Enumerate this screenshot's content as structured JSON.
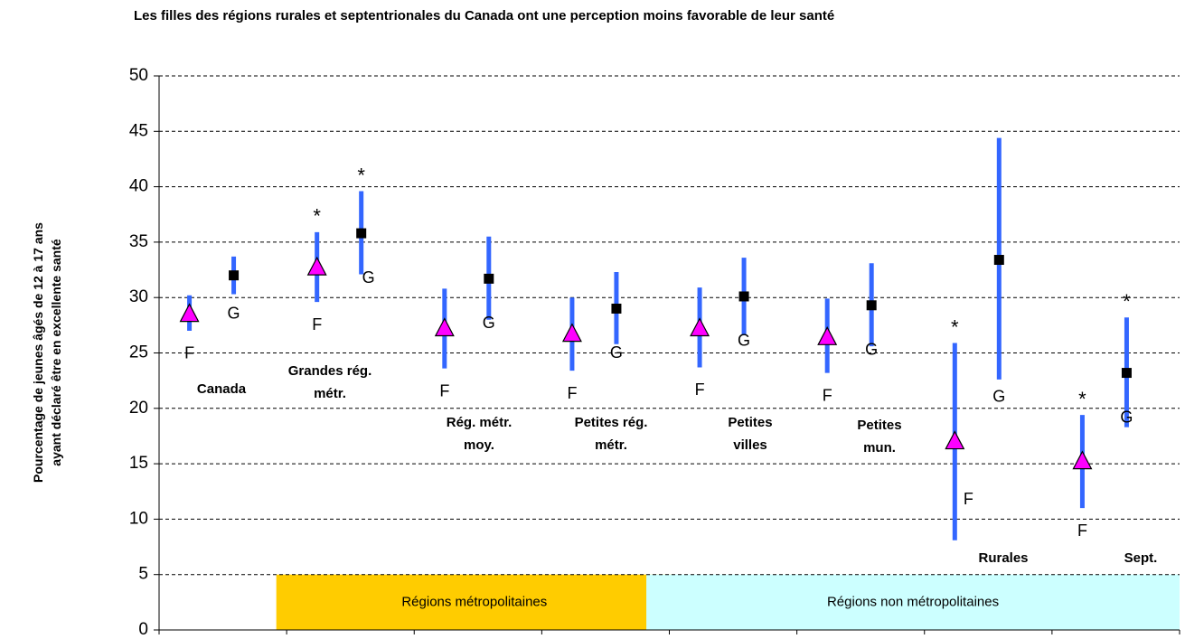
{
  "chart_data": {
    "type": "errorbar",
    "title": "Les filles des régions rurales et septentrionales du Canada ont une perception moins favorable de leur santé",
    "y_label": "Pourcentage de jeunes âgés de 12 à 17 ans\nayant déclaré être en excellente santé",
    "categories": [
      "Canada",
      "Grandes rég.\nmétr.",
      "Rég. métr.\nmoy.",
      "Petites rég.\nmétr.",
      "Petites\nvilles",
      "Petites\nmun.",
      "Rurales",
      "Sept."
    ],
    "series": [
      {
        "name": "F",
        "color": "#ff00ff",
        "marker": "triangle",
        "values": [
          28.5,
          32.7,
          27.2,
          26.7,
          27.2,
          26.4,
          17.0,
          15.2
        ],
        "low": [
          27.0,
          29.6,
          23.6,
          23.4,
          23.7,
          23.2,
          8.1,
          11.0
        ],
        "high": [
          30.2,
          35.9,
          30.8,
          30.0,
          30.9,
          29.9,
          25.9,
          19.4
        ],
        "significance": [
          null,
          "*",
          null,
          null,
          null,
          null,
          "*",
          "*"
        ]
      },
      {
        "name": "G",
        "color": "#000000",
        "marker": "square",
        "values": [
          32.0,
          35.8,
          31.7,
          29.0,
          30.1,
          29.3,
          33.4,
          23.2
        ],
        "low": [
          30.3,
          32.1,
          28.0,
          25.8,
          26.6,
          25.6,
          22.6,
          18.3
        ],
        "high": [
          33.7,
          39.6,
          35.5,
          32.3,
          33.6,
          33.1,
          44.4,
          28.2
        ],
        "significance": [
          null,
          "*",
          null,
          null,
          null,
          null,
          null,
          "*"
        ]
      }
    ],
    "error_color": "#3366ff",
    "groups": [
      {
        "label": "Régions métropolitaines",
        "color": "#ffcc00",
        "members": [
          "Grandes rég.\nmétr.",
          "Rég. métr.\nmoy.",
          "Petites rég.\nmétr."
        ],
        "ylim": [
          0,
          5
        ]
      },
      {
        "label": "Régions non métropolitaines",
        "color": "#ccffff",
        "members": [
          "Petites\nvilles",
          "Petites\nmun.",
          "Rurales",
          "Sept."
        ],
        "ylim": [
          0,
          5
        ]
      }
    ],
    "ylim": [
      0,
      50
    ],
    "yticks": [
      0,
      5,
      10,
      15,
      20,
      25,
      30,
      35,
      40,
      45,
      50
    ],
    "grid": true
  }
}
